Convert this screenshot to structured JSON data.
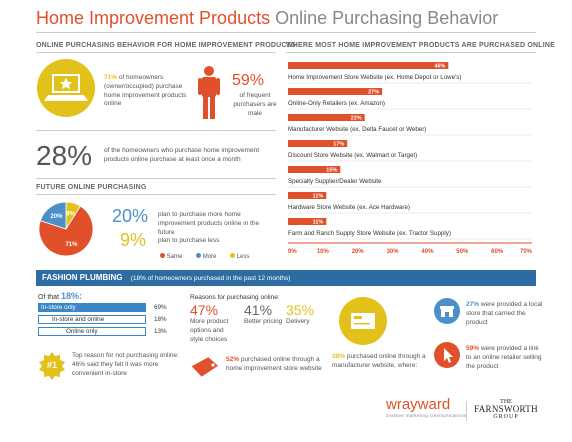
{
  "title": {
    "part1": "Home Improvement Products",
    "part2": "Online Purchasing Behavior"
  },
  "left_section": {
    "header": "ONLINE PURCHASING BEHAVIOR FOR HOME IMPROVEMENT PRODUCTS",
    "stat1_pct": "71%",
    "stat1_text": "of homeowners (owner/occupied) purchase home improvement products online",
    "stat2_pct": "59%",
    "stat2_text": "of frequent purchasers are male",
    "stat3_pct": "28%",
    "stat3_text": "of the homeowners who purchase home improvement products online purchase at least once a month"
  },
  "future": {
    "header": "FUTURE ONLINE PURCHASING",
    "pct_more": "20%",
    "text_more": "plan to purchase more home improvement products online in the future",
    "pct_less": "9%",
    "text_less": "plan to purchase less",
    "legend": [
      "Same",
      "More",
      "Less"
    ]
  },
  "chart_data": [
    {
      "type": "pie",
      "labels": [
        "Same",
        "More",
        "Less"
      ],
      "values": [
        71,
        20,
        9
      ],
      "data_labels": [
        "71%",
        "20%",
        "9%"
      ],
      "colors": [
        "#e0502a",
        "#4d8fc8",
        "#e3c11b"
      ],
      "legend": "bottom"
    },
    {
      "type": "bar",
      "orientation": "horizontal",
      "title": "WHERE MOST HOME IMPROVEMENT PRODUCTS ARE PURCHASED ONLINE",
      "categories": [
        "Home Improvement Store Website (ex. Home Depot or Lowe's)",
        "Online-Only Retailers (ex. Amazon)",
        "Manufacturer Website (ex. Delta Faucet or Weber)",
        "Discount Store Website (ex. Walmart or Target)",
        "Specialty Supplier/Dealer Website",
        "Hardware Store Website (ex. Ace Hardware)",
        "Farm and Ranch Supply Store Website (ex. Tractor Supply)"
      ],
      "values": [
        46,
        27,
        22,
        17,
        15,
        11,
        11
      ],
      "data_labels": [
        "46%",
        "27%",
        "22%",
        "17%",
        "15%",
        "11%",
        "11%"
      ],
      "xlim": [
        0,
        70
      ],
      "xticks": [
        "0%",
        "10%",
        "20%",
        "30%",
        "40%",
        "50%",
        "60%",
        "70%"
      ],
      "color": "#e0502a"
    }
  ],
  "fashion": {
    "title": "FASHION PLUMBING",
    "subtitle": "(18% of homeowners purchased in the past 12 months)",
    "of_that_label": "Of that",
    "of_that_pct": "18%:",
    "rows": [
      {
        "label": "In-store only",
        "value": "69%"
      },
      {
        "label": "In-store and online",
        "value": "18%"
      },
      {
        "label": "Online only",
        "value": "13%"
      }
    ],
    "top_reason_badge": "#1",
    "top_reason_intro": "Top reason for not purchasing online:",
    "top_reason_text": "46% said they felt it was more convenient in-store",
    "reasons_header": "Reasons for purchasing online:",
    "reasons": [
      {
        "pct": "47%",
        "text": "More product options and style choices"
      },
      {
        "pct": "41%",
        "text": "Better pricing"
      },
      {
        "pct": "35%",
        "text": "Delivery"
      }
    ],
    "purchased_pct": "52%",
    "purchased_text": "purchased online through a home improvement store website",
    "mfr_pct": "38%",
    "mfr_text": "purchased online through a manufacturer website, where:",
    "local_pct": "27%",
    "local_text": "were provided a local store that carried the product",
    "link_pct": "59%",
    "link_text": "were provided a link to an online retailer selling the product"
  },
  "logos": {
    "wray": "wrayward",
    "wray_sub": "creative marketing communications",
    "farn_the": "THE",
    "farn_name": "FARNSWORTH",
    "farn_group": "GROUP"
  }
}
